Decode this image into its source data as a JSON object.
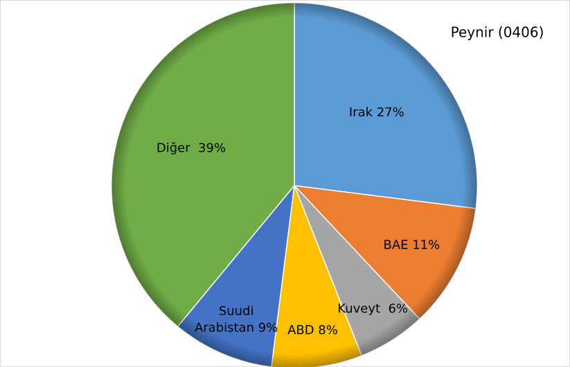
{
  "chart_data": {
    "type": "pie",
    "title": "Peynir (0406)",
    "categories": [
      "Irak",
      "BAE",
      "Kuveyt",
      "ABD",
      "Suudi Arabistan",
      "Diğer"
    ],
    "values": [
      27,
      11,
      6,
      8,
      9,
      39
    ],
    "value_labels": [
      "Irak 27%",
      "BAE 11%",
      "Kuveyt  6%",
      "ABD 8%",
      "Suudi Arabistan 9%",
      "Diğer  39%"
    ],
    "colors": [
      "#5b9bd5",
      "#ed7d31",
      "#a5a5a5",
      "#ffc000",
      "#4472c4",
      "#70ad47"
    ]
  }
}
